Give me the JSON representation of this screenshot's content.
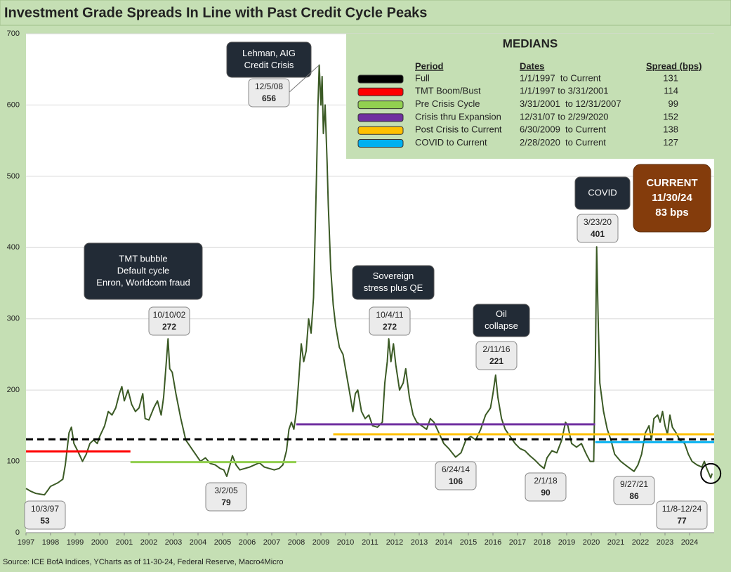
{
  "chart_data": {
    "type": "line",
    "title": "Investment Grade Spreads In Line with Past Credit Cycle Peaks",
    "source": "Source: ICE BofA Indices, YCharts as of 11-30-24, Federal Reserve, Macro4Micro",
    "xlim": [
      1997,
      2025
    ],
    "xticks": [
      1997,
      1998,
      1999,
      2000,
      2001,
      2002,
      2003,
      2004,
      2005,
      2006,
      2007,
      2008,
      2009,
      2010,
      2011,
      2012,
      2013,
      2014,
      2015,
      2016,
      2017,
      2018,
      2019,
      2020,
      2021,
      2022,
      2023,
      2024
    ],
    "ylim": [
      0,
      700
    ],
    "yticks": [
      0,
      100,
      200,
      300,
      400,
      500,
      600,
      700
    ],
    "grid": true,
    "series": [
      {
        "color": "#3b5a25",
        "x": [
          1997.0,
          1997.2,
          1997.4,
          1997.75,
          1997.9,
          1998.0,
          1998.3,
          1998.5,
          1998.6,
          1998.75,
          1998.85,
          1998.95,
          1999.1,
          1999.3,
          1999.45,
          1999.6,
          1999.75,
          1999.9,
          2000.0,
          2000.2,
          2000.35,
          2000.5,
          2000.65,
          2000.8,
          2000.9,
          2001.0,
          2001.15,
          2001.3,
          2001.45,
          2001.6,
          2001.75,
          2001.85,
          2002.0,
          2002.2,
          2002.35,
          2002.5,
          2002.6,
          2002.7,
          2002.78,
          2002.85,
          2002.95,
          2003.1,
          2003.3,
          2003.5,
          2003.7,
          2003.9,
          2004.1,
          2004.3,
          2004.5,
          2004.7,
          2004.9,
          2005.05,
          2005.17,
          2005.3,
          2005.4,
          2005.55,
          2005.7,
          2005.9,
          2006.1,
          2006.3,
          2006.5,
          2006.7,
          2006.9,
          2007.1,
          2007.3,
          2007.45,
          2007.6,
          2007.7,
          2007.8,
          2007.9,
          2008.0,
          2008.1,
          2008.2,
          2008.3,
          2008.4,
          2008.5,
          2008.6,
          2008.7,
          2008.75,
          2008.82,
          2008.88,
          2008.93,
          2009.0,
          2009.05,
          2009.1,
          2009.17,
          2009.25,
          2009.3,
          2009.4,
          2009.5,
          2009.6,
          2009.75,
          2009.9,
          2010.0,
          2010.15,
          2010.3,
          2010.4,
          2010.5,
          2010.65,
          2010.8,
          2010.95,
          2011.1,
          2011.3,
          2011.5,
          2011.6,
          2011.7,
          2011.76,
          2011.85,
          2011.95,
          2012.05,
          2012.2,
          2012.35,
          2012.45,
          2012.6,
          2012.75,
          2012.9,
          2013.1,
          2013.3,
          2013.45,
          2013.6,
          2013.8,
          2014.0,
          2014.2,
          2014.48,
          2014.7,
          2014.9,
          2015.1,
          2015.3,
          2015.5,
          2015.7,
          2015.9,
          2016.0,
          2016.11,
          2016.2,
          2016.35,
          2016.5,
          2016.7,
          2016.9,
          2017.1,
          2017.3,
          2017.5,
          2017.7,
          2017.9,
          2018.08,
          2018.2,
          2018.4,
          2018.6,
          2018.8,
          2018.95,
          2019.05,
          2019.2,
          2019.4,
          2019.6,
          2019.8,
          2019.95,
          2020.1,
          2020.17,
          2020.22,
          2020.28,
          2020.35,
          2020.5,
          2020.65,
          2020.8,
          2020.95,
          2021.2,
          2021.5,
          2021.74,
          2021.9,
          2022.05,
          2022.2,
          2022.35,
          2022.45,
          2022.55,
          2022.7,
          2022.8,
          2022.9,
          2023.0,
          2023.1,
          2023.2,
          2023.3,
          2023.45,
          2023.6,
          2023.8,
          2023.95,
          2024.1,
          2024.3,
          2024.5,
          2024.6,
          2024.7,
          2024.86,
          2024.92
        ],
        "values": [
          62,
          58,
          55,
          53,
          60,
          65,
          70,
          75,
          95,
          140,
          148,
          125,
          115,
          100,
          110,
          125,
          130,
          125,
          135,
          150,
          170,
          165,
          175,
          195,
          205,
          185,
          200,
          180,
          170,
          175,
          195,
          160,
          158,
          175,
          185,
          165,
          190,
          235,
          272,
          230,
          225,
          195,
          160,
          130,
          120,
          110,
          100,
          105,
          97,
          95,
          90,
          88,
          79,
          95,
          108,
          95,
          88,
          90,
          92,
          95,
          98,
          92,
          90,
          88,
          90,
          95,
          115,
          145,
          155,
          145,
          170,
          215,
          265,
          240,
          255,
          300,
          280,
          330,
          400,
          500,
          600,
          656,
          600,
          640,
          560,
          600,
          520,
          460,
          370,
          320,
          290,
          260,
          250,
          230,
          200,
          170,
          195,
          200,
          170,
          160,
          165,
          150,
          148,
          155,
          210,
          240,
          272,
          240,
          265,
          235,
          200,
          210,
          230,
          190,
          165,
          155,
          150,
          145,
          160,
          155,
          140,
          125,
          118,
          106,
          112,
          130,
          135,
          130,
          145,
          165,
          175,
          195,
          221,
          190,
          160,
          145,
          135,
          125,
          118,
          115,
          108,
          102,
          95,
          90,
          105,
          115,
          112,
          130,
          155,
          150,
          125,
          120,
          125,
          110,
          100,
          100,
          250,
          401,
          300,
          210,
          170,
          145,
          130,
          110,
          100,
          92,
          86,
          95,
          110,
          140,
          150,
          130,
          160,
          165,
          155,
          170,
          150,
          138,
          165,
          148,
          140,
          130,
          125,
          110,
          100,
          95,
          92,
          100,
          90,
          77,
          83
        ]
      }
    ],
    "medians": {
      "title": "MEDIANS",
      "headers": [
        "Period",
        "Dates",
        "Spread (bps)"
      ],
      "rows": [
        {
          "period": "Full",
          "dates": "1/1/1997  to Current",
          "spread": 131,
          "color": "#000000",
          "style": "dashed",
          "x": [
            1997,
            2025
          ]
        },
        {
          "period": "TMT Boom/Bust",
          "dates": "1/1/1997 to 3/31/2001",
          "spread": 114,
          "color": "#ff0000",
          "x": [
            1997,
            2001.25
          ]
        },
        {
          "period": "Pre Crisis Cycle",
          "dates": "3/31/2001  to 12/31/2007",
          "spread": 99,
          "color": "#92d050",
          "x": [
            2001.25,
            2008.0
          ]
        },
        {
          "period": "Crisis thru Expansion",
          "dates": "12/31/07 to 2/29/2020",
          "spread": 152,
          "color": "#7030a0",
          "x": [
            2008.0,
            2020.16
          ]
        },
        {
          "period": "Post Crisis to Current",
          "dates": "6/30/2009  to Current",
          "spread": 138,
          "color": "#ffc000",
          "x": [
            2009.5,
            2025
          ]
        },
        {
          "period": "COVID to Current",
          "dates": "2/28/2020  to Current",
          "spread": 127,
          "color": "#00b0f0",
          "x": [
            2020.16,
            2025
          ]
        }
      ]
    },
    "callouts": [
      {
        "lines": [
          "Lehman, AIG",
          "Credit Crisis"
        ]
      },
      {
        "lines": [
          "TMT bubble",
          "Default cycle",
          "Enron, Worldcom fraud"
        ]
      },
      {
        "lines": [
          "Sovereign",
          "stress plus QE"
        ]
      },
      {
        "lines": [
          "Oil",
          "collapse"
        ]
      },
      {
        "lines": [
          "COVID"
        ]
      }
    ],
    "point_labels": [
      {
        "date": "10/3/97",
        "value": 53,
        "x": 1997.75
      },
      {
        "date": "10/10/02",
        "value": 272,
        "x": 2002.78
      },
      {
        "date": "3/2/05",
        "value": 79,
        "x": 2005.17
      },
      {
        "date": "12/5/08",
        "value": 656,
        "x": 2008.93
      },
      {
        "date": "10/4/11",
        "value": 272,
        "x": 2011.76
      },
      {
        "date": "6/24/14",
        "value": 106,
        "x": 2014.48
      },
      {
        "date": "2/11/16",
        "value": 221,
        "x": 2016.11
      },
      {
        "date": "2/1/18",
        "value": 90,
        "x": 2018.08
      },
      {
        "date": "3/23/20",
        "value": 401,
        "x": 2020.22
      },
      {
        "date": "9/27/21",
        "value": 86,
        "x": 2021.74
      },
      {
        "date": "11/8-12/24",
        "value": 77,
        "x": 2024.86
      }
    ],
    "current": {
      "title": "CURRENT",
      "date": "11/30/24",
      "value": {
        "value": 83,
        "label": "83 bps"
      },
      "x": 2024.92
    }
  }
}
